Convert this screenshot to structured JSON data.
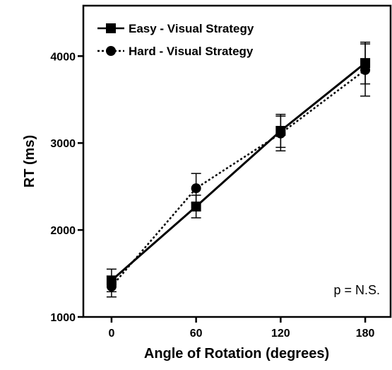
{
  "chart_data": {
    "type": "line",
    "xlabel": "Angle of Rotation (degrees)",
    "ylabel": "RT (ms)",
    "annotation": "p = N.S.",
    "xlim": [
      -20,
      198
    ],
    "xticks": [
      0,
      60,
      120,
      180
    ],
    "ylim": [
      1000,
      4580
    ],
    "yticks": [
      1000,
      2000,
      3000,
      4000
    ],
    "legend": "upper left",
    "series": [
      {
        "name": "Easy - Visual Strategy",
        "color": "#000000",
        "marker": "square",
        "linestyle": "solid",
        "x": [
          0,
          60,
          120,
          180
        ],
        "values": [
          1420,
          2270,
          3140,
          3920
        ],
        "errors": [
          130,
          130,
          190,
          240
        ]
      },
      {
        "name": "Hard -  Visual Strategy",
        "color": "#000000",
        "marker": "circle",
        "linestyle": "dotted",
        "x": [
          0,
          60,
          120,
          180
        ],
        "values": [
          1350,
          2480,
          3110,
          3840
        ],
        "errors": [
          120,
          170,
          200,
          300
        ]
      }
    ]
  }
}
